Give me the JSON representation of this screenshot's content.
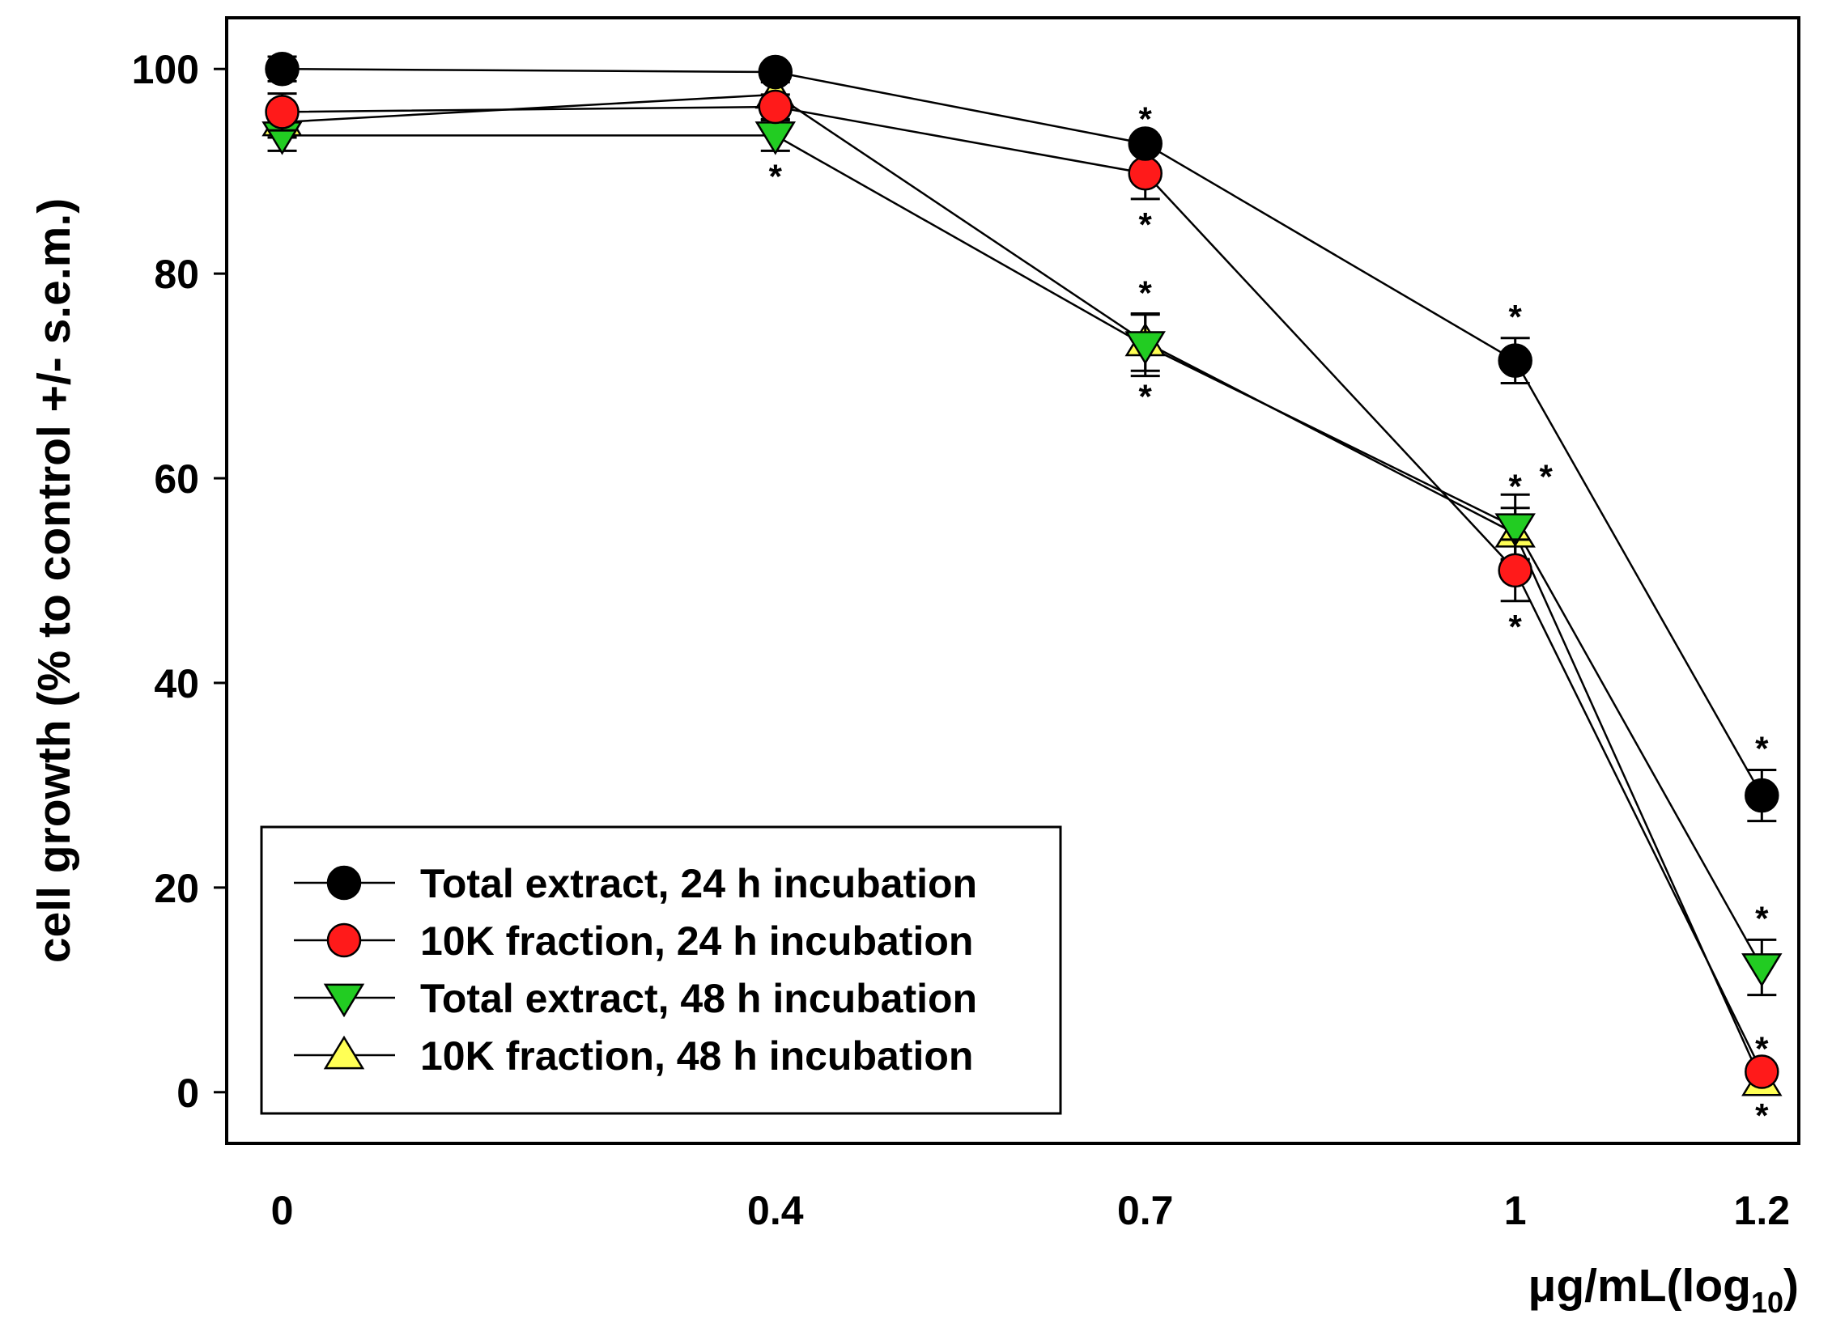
{
  "chart_data": {
    "type": "line",
    "title": "",
    "xlabel_main": "μg/mL(log",
    "xlabel_sub": "10",
    "xlabel_close": ")",
    "ylabel": "cell growth (% to control +/- s.e.m.)",
    "x": [
      0,
      0.4,
      0.7,
      1,
      1.2
    ],
    "x_tick_labels": [
      "0",
      "0.4",
      "0.7",
      "1",
      "1.2"
    ],
    "xlim": [
      -0.045,
      1.23
    ],
    "ylim": [
      -5,
      105
    ],
    "y_ticks": [
      0,
      20,
      40,
      60,
      80,
      100
    ],
    "y_tick_labels": [
      "0",
      "20",
      "40",
      "60",
      "80",
      "100"
    ],
    "grid": false,
    "legend_position": "bottom-left",
    "series": [
      {
        "name": "Total extract, 24 h incubation",
        "marker": "circle",
        "color": "#000000",
        "values": [
          100,
          99.7,
          92.7,
          71.5,
          29
        ],
        "errors": [
          1.2,
          0.6,
          0.8,
          2.2,
          2.5
        ],
        "significance": [
          "",
          "",
          "*",
          "*",
          "*"
        ]
      },
      {
        "name": "10K fraction, 24 h incubation",
        "marker": "circle",
        "color": "#ff1a1a",
        "values": [
          95.8,
          96.3,
          89.8,
          51,
          2
        ],
        "errors": [
          1.8,
          1.2,
          2.5,
          3,
          0.8
        ],
        "significance": [
          "",
          "",
          "*",
          "*",
          "*"
        ]
      },
      {
        "name": "Total extract, 48 h incubation",
        "marker": "triangle-down",
        "color": "#22cc22",
        "values": [
          93.5,
          93.5,
          73,
          55.2,
          12.2
        ],
        "errors": [
          1.5,
          1.5,
          3,
          3.2,
          2.7
        ],
        "significance": [
          "",
          "*",
          "*",
          "*",
          "*"
        ]
      },
      {
        "name": "10K fraction, 48 h incubation",
        "marker": "triangle-up",
        "color": "#ffff55",
        "values": [
          94.8,
          97.5,
          73.3,
          54.6,
          1
        ],
        "errors": [
          1.5,
          1.2,
          2.8,
          2.5,
          0.8
        ],
        "significance": [
          "",
          "",
          "*",
          "*",
          "*"
        ]
      }
    ]
  }
}
